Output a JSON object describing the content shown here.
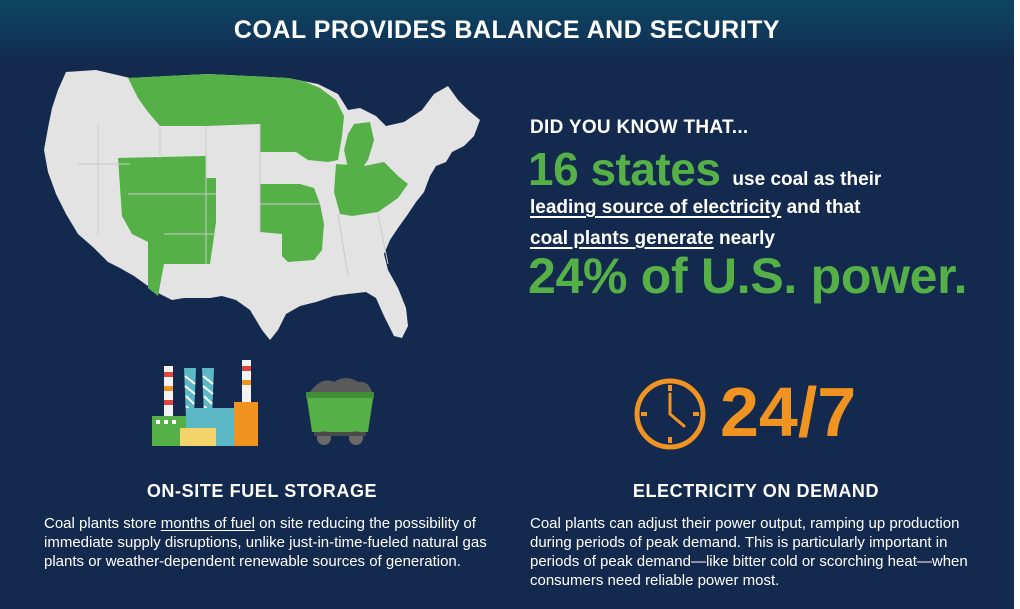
{
  "title": "COAL PROVIDES BALANCE AND SECURITY",
  "did_you_know": "DID YOU KNOW THAT...",
  "stat_states": "16 states",
  "stat_states_suffix": "use coal as their",
  "line2_underlined": "leading source of electricity",
  "line2_rest": " and that",
  "line3_underlined": "coal plants generate",
  "line3_rest": " nearly",
  "stat_power": "24% of U.S. power.",
  "stat_247": "24/7",
  "left_heading": "ON-SITE FUEL STORAGE",
  "left_para_before": "Coal plants store ",
  "left_para_underlined": "months of fuel",
  "left_para_after": " on site reducing the possibility of immediate supply disruptions, unlike just-in-time-fueled natural gas plants or weather-dependent renewable sources of generation.",
  "right_heading": "ELECTRICITY ON DEMAND",
  "right_para": "Coal plants can adjust their power output, ramping up production during periods of peak demand. This is particularly important in periods of peak demand—like bitter cold or scorching heat—when consumers need reliable power most.",
  "icons": {
    "map": "us-map-icon",
    "factory": "power-plant-icon",
    "cart": "coal-cart-icon",
    "clock": "clock-icon"
  },
  "colors": {
    "background": "#132a4e",
    "green": "#55b047",
    "orange": "#f09320",
    "map_gray": "#e3e3e3"
  }
}
